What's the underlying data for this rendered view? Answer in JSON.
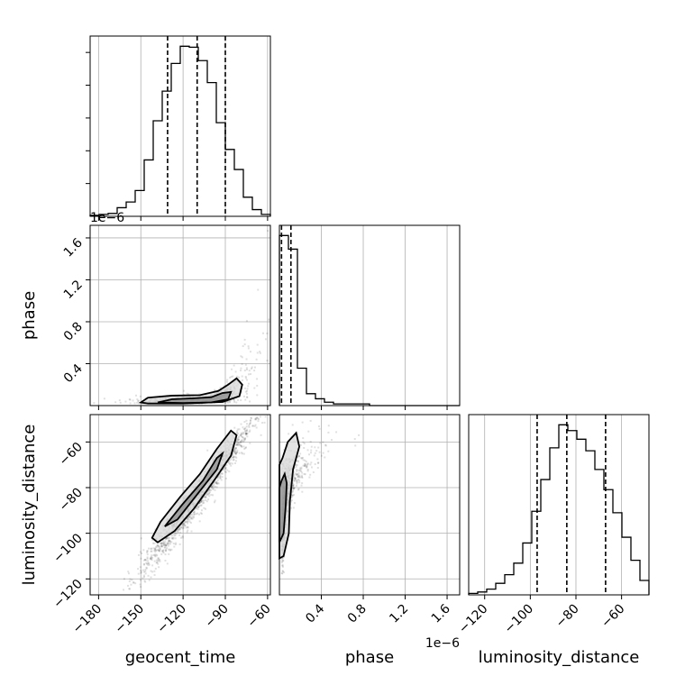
{
  "chart_data": {
    "type": "corner",
    "parameters": [
      "geocent_time",
      "phase",
      "luminosity_distance"
    ],
    "ranges": {
      "geocent_time": [
        -186,
        -58
      ],
      "phase": [
        0.0,
        1.72
      ],
      "luminosity_distance": [
        -127,
        -48
      ]
    },
    "ticks": {
      "geocent_time": {
        "values": [
          -180,
          -150,
          -120,
          -90,
          -60
        ],
        "labels": [
          "−180",
          "−150",
          "−120",
          "−90",
          "−60"
        ]
      },
      "phase": {
        "values": [
          0.4,
          0.8,
          1.2,
          1.6
        ],
        "labels": [
          "0.4",
          "0.8",
          "1.2",
          "1.6"
        ],
        "offset_text": "1e−6"
      },
      "luminosity_distance": {
        "values": [
          -120,
          -100,
          -80,
          -60
        ],
        "labels": [
          "−120",
          "−100",
          "−80",
          "−60"
        ]
      }
    },
    "quantiles": {
      "geocent_time": [
        -131,
        -110,
        -90
      ],
      "phase": [
        0.02,
        0.11
      ],
      "luminosity_distance": [
        -97,
        -84,
        -67
      ]
    },
    "histograms": {
      "geocent_time": {
        "edges_start": -186,
        "bin_width": 6.4,
        "counts": [
          1,
          2,
          3,
          9,
          15,
          27,
          59,
          100,
          131,
          160,
          178,
          177,
          163,
          140,
          98,
          70,
          49,
          20,
          7,
          2
        ]
      },
      "phase": {
        "edges_start": 0.0,
        "bin_width": 0.086,
        "counts": [
          100,
          92,
          22,
          7,
          4,
          2,
          1,
          1,
          1,
          1,
          0,
          0,
          0,
          0,
          0,
          0,
          0,
          0,
          0,
          0
        ]
      },
      "luminosity_distance": {
        "edges_start": -127,
        "bin_width": 3.95,
        "counts": [
          1,
          2,
          4,
          8,
          14,
          22,
          36,
          58,
          80,
          102,
          118,
          114,
          108,
          100,
          87,
          73,
          57,
          40,
          24,
          10
        ]
      }
    },
    "contours": {
      "geocent_time|phase": [
        [
          [
            -150,
            0.03
          ],
          [
            -145,
            0.075
          ],
          [
            -128,
            0.095
          ],
          [
            -108,
            0.1
          ],
          [
            -95,
            0.14
          ],
          [
            -88,
            0.2
          ],
          [
            -82,
            0.26
          ],
          [
            -78,
            0.2
          ],
          [
            -80,
            0.09
          ],
          [
            -92,
            0.035
          ],
          [
            -120,
            0.02
          ],
          [
            -145,
            0.02
          ]
        ],
        [
          [
            -138,
            0.03
          ],
          [
            -128,
            0.06
          ],
          [
            -112,
            0.07
          ],
          [
            -100,
            0.08
          ],
          [
            -92,
            0.12
          ],
          [
            -86,
            0.13
          ],
          [
            -88,
            0.06
          ],
          [
            -100,
            0.03
          ],
          [
            -120,
            0.025
          ]
        ]
      ],
      "geocent_time|luminosity_distance": [
        [
          [
            -142,
            -102
          ],
          [
            -136,
            -95
          ],
          [
            -122,
            -84
          ],
          [
            -108,
            -74
          ],
          [
            -96,
            -63
          ],
          [
            -86,
            -55
          ],
          [
            -82,
            -57
          ],
          [
            -86,
            -66
          ],
          [
            -97,
            -76
          ],
          [
            -112,
            -89
          ],
          [
            -126,
            -99
          ],
          [
            -138,
            -104
          ]
        ],
        [
          [
            -133,
            -97
          ],
          [
            -120,
            -87
          ],
          [
            -106,
            -77
          ],
          [
            -96,
            -67
          ],
          [
            -92,
            -65
          ],
          [
            -96,
            -72
          ],
          [
            -110,
            -83
          ],
          [
            -124,
            -94
          ]
        ]
      ],
      "phase|luminosity_distance": [
        [
          [
            0.0,
            -111
          ],
          [
            0.04,
            -110
          ],
          [
            0.09,
            -100
          ],
          [
            0.1,
            -86
          ],
          [
            0.13,
            -72
          ],
          [
            0.19,
            -62
          ],
          [
            0.16,
            -56
          ],
          [
            0.08,
            -60
          ],
          [
            0.03,
            -67
          ],
          [
            0.0,
            -70
          ]
        ],
        [
          [
            0.0,
            -104
          ],
          [
            0.04,
            -100
          ],
          [
            0.06,
            -88
          ],
          [
            0.07,
            -78
          ],
          [
            0.05,
            -74
          ],
          [
            0.02,
            -77
          ],
          [
            0.0,
            -80
          ]
        ]
      ]
    },
    "grid": true,
    "legend": "none"
  }
}
